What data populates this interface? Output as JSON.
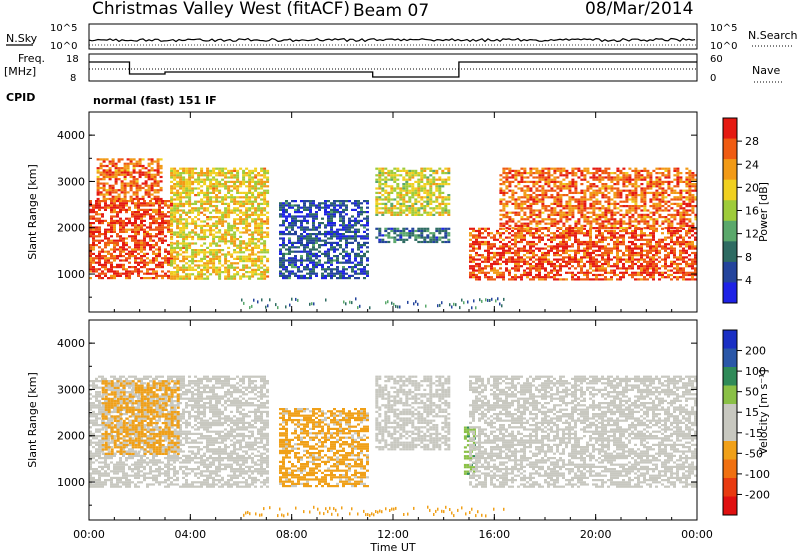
{
  "header": {
    "title": "Christmas Valley West (fitACF)",
    "beam": "Beam 07",
    "date": "08/Mar/2014"
  },
  "strip_labels": {
    "nsky": "N.Sky",
    "nsearch": "N.Search",
    "freq": "Freq.",
    "freq_unit": "[MHz]",
    "nave": "Nave",
    "cpid": "CPID",
    "cpid_value": "normal (fast) 151 IF",
    "sky_ticks_left": [
      "10^5",
      "10^0"
    ],
    "sky_ticks_right": [
      "10^5",
      "10^0"
    ],
    "freq_ticks_left": [
      "18",
      "8"
    ],
    "freq_ticks_right": [
      "60",
      "0"
    ]
  },
  "axes": {
    "ylabel": "Slant Range [km]",
    "xlabel": "Time UT",
    "y_ticks": [
      "1000",
      "2000",
      "3000",
      "4000"
    ],
    "x_ticks": [
      "00:00",
      "04:00",
      "08:00",
      "12:00",
      "16:00",
      "20:00",
      "00:00"
    ]
  },
  "colors": {
    "power_scale": [
      "#1e22e6",
      "#24449c",
      "#2e6b62",
      "#5aa86b",
      "#9ecc3a",
      "#f0d020",
      "#f29a16",
      "#ef5b12",
      "#e51a12"
    ],
    "velocity_scale": [
      "#1a2fc4",
      "#2a57a8",
      "#2f8a58",
      "#8ac046",
      "#c8c8c0",
      "#c8c8c0",
      "#f0a018",
      "#f07010",
      "#e83a10",
      "#e01010"
    ]
  },
  "chart_data": [
    {
      "type": "heatmap",
      "name": "power",
      "colorbar_label": "Power [dB]",
      "colorbar_ticks": [
        "4",
        "8",
        "12",
        "16",
        "20",
        "24",
        "28"
      ],
      "clim": [
        0,
        32
      ],
      "x_range_hours": [
        0,
        24
      ],
      "y_range_km": [
        180,
        4500
      ],
      "regions": [
        {
          "t": [
            0.0,
            3.2
          ],
          "r": [
            900,
            2600
          ],
          "power": 28
        },
        {
          "t": [
            0.3,
            2.8
          ],
          "r": [
            2600,
            3500
          ],
          "power": 26
        },
        {
          "t": [
            3.2,
            7.0
          ],
          "r": [
            900,
            3300
          ],
          "power": 20
        },
        {
          "t": [
            7.5,
            11.0
          ],
          "r": [
            900,
            2600
          ],
          "power": 6
        },
        {
          "t": [
            11.3,
            14.2
          ],
          "r": [
            2300,
            3300
          ],
          "power": 18
        },
        {
          "t": [
            11.3,
            14.2
          ],
          "r": [
            1700,
            2000
          ],
          "power": 8
        },
        {
          "t": [
            15.0,
            24.0
          ],
          "r": [
            900,
            2000
          ],
          "power": 28
        },
        {
          "t": [
            16.2,
            24.0
          ],
          "r": [
            2000,
            3300
          ],
          "power": 26
        }
      ]
    },
    {
      "type": "heatmap",
      "name": "velocity",
      "colorbar_label": "Velocity [m s⁻¹]",
      "colorbar_ticks": [
        "200",
        "100",
        "50",
        "15",
        "-15",
        "-50",
        "-100",
        "-200"
      ],
      "clim": [
        -250,
        250
      ],
      "x_range_hours": [
        0,
        24
      ],
      "y_range_km": [
        180,
        4500
      ],
      "regions": [
        {
          "t": [
            0.0,
            7.0
          ],
          "r": [
            900,
            3300
          ],
          "velocity": 0
        },
        {
          "t": [
            0.5,
            3.5
          ],
          "r": [
            1600,
            3200
          ],
          "velocity": -60
        },
        {
          "t": [
            7.5,
            11.0
          ],
          "r": [
            900,
            2600
          ],
          "velocity": -60
        },
        {
          "t": [
            11.3,
            14.2
          ],
          "r": [
            1700,
            3300
          ],
          "velocity": 0
        },
        {
          "t": [
            14.8,
            15.2
          ],
          "r": [
            1200,
            2200
          ],
          "velocity": 40
        },
        {
          "t": [
            15.0,
            24.0
          ],
          "r": [
            900,
            3300
          ],
          "velocity": 0
        }
      ]
    }
  ]
}
